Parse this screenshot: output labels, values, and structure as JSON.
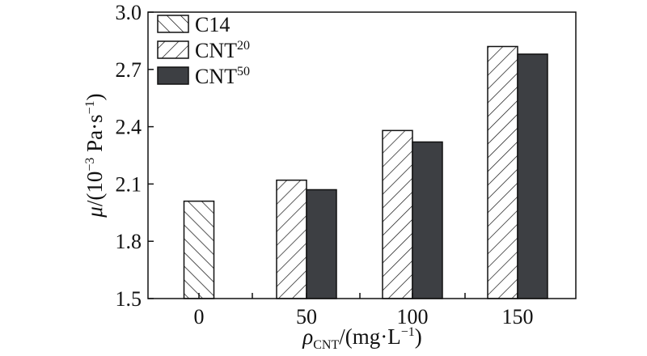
{
  "chart_data": {
    "type": "bar",
    "categories": [
      "0",
      "50",
      "100",
      "150"
    ],
    "series": [
      {
        "name": "C14",
        "pattern": "hatch-forward",
        "values": [
          2.01,
          null,
          null,
          null
        ]
      },
      {
        "name": "CNT",
        "name_sup": "20",
        "pattern": "hatch-backward",
        "values": [
          null,
          2.12,
          2.38,
          2.82
        ]
      },
      {
        "name": "CNT",
        "name_sup": "50",
        "pattern": "solid",
        "color": "#3d3f43",
        "values": [
          null,
          2.07,
          2.32,
          2.78
        ]
      }
    ],
    "ylim": [
      1.5,
      3.0
    ],
    "yticks": [
      "1.5",
      "1.8",
      "2.1",
      "2.4",
      "2.7",
      "3.0"
    ],
    "ylabel": {
      "prefix": "μ",
      "text": "/(10",
      "exp1": "−3",
      "unit": " Pa·s",
      "exp2": "−1",
      "close": ")"
    },
    "xlabel": {
      "prefix": "ρ",
      "sub": "CNT",
      "text": "/(mg·L",
      "exp": "−1",
      "close": ")"
    },
    "legend": "top-left",
    "grid": false
  }
}
